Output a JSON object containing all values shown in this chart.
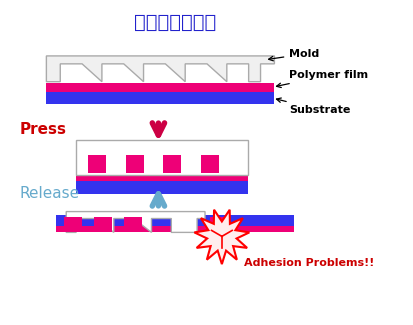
{
  "title": "モールドの離型",
  "title_color": "#2222cc",
  "title_fontsize": 14,
  "bg_color": "#ffffff",
  "mold_color": "#f0f0f0",
  "mold_edge_color": "#aaaaaa",
  "polymer_color": "#ee0077",
  "substrate_color": "#3333ee",
  "press_arrow_color": "#cc0044",
  "release_arrow_color": "#66aacc",
  "press_label": "Press",
  "press_label_color": "#cc0000",
  "release_label": "Release",
  "release_label_color": "#66aacc",
  "adhesion_label": "Adhesion Problems!!",
  "adhesion_label_color": "#cc0000",
  "label_mold": "Mold",
  "label_polymer": "Polymer film",
  "label_substrate": "Substrate"
}
